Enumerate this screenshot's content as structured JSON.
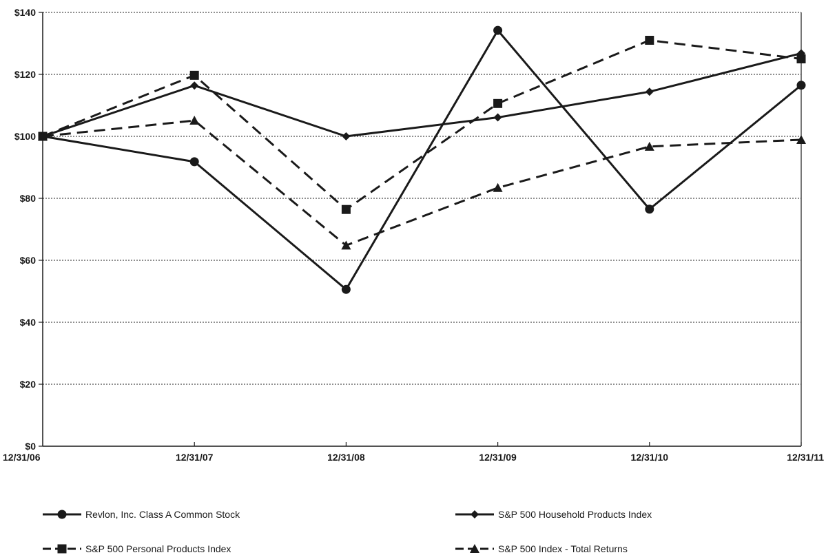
{
  "chart_data": {
    "type": "line",
    "title": "",
    "xlabel": "",
    "ylabel": "",
    "categories": [
      "12/31/06",
      "12/31/07",
      "12/31/08",
      "12/31/09",
      "12/31/10",
      "12/31/11"
    ],
    "ylim": [
      0,
      140
    ],
    "y_tick_step": 20,
    "y_tick_labels": [
      "$0",
      "$20",
      "$40",
      "$60",
      "$80",
      "$100",
      "$120",
      "$140"
    ],
    "grid": "horizontal-dotted",
    "legend_position": "bottom",
    "line_color": "#1a1a1a",
    "series": [
      {
        "name": "Revlon, Inc. Class A Common Stock",
        "marker": "circle",
        "dash": "solid",
        "values": [
          100,
          91.8,
          50.6,
          134.2,
          76.5,
          116.5
        ]
      },
      {
        "name": "S&P 500 Household Products Index",
        "marker": "diamond",
        "dash": "solid",
        "values": [
          100,
          116.4,
          100,
          106.1,
          114.4,
          126.8
        ]
      },
      {
        "name": "S&P 500 Personal Products Index",
        "marker": "square",
        "dash": "dashed",
        "values": [
          100,
          119.7,
          76.4,
          110.6,
          131.0,
          125.0
        ]
      },
      {
        "name": "S&P 500 Index - Total Returns",
        "marker": "triangle",
        "dash": "dashed",
        "values": [
          100,
          105.1,
          64.8,
          83.4,
          96.7,
          98.9
        ]
      }
    ]
  }
}
